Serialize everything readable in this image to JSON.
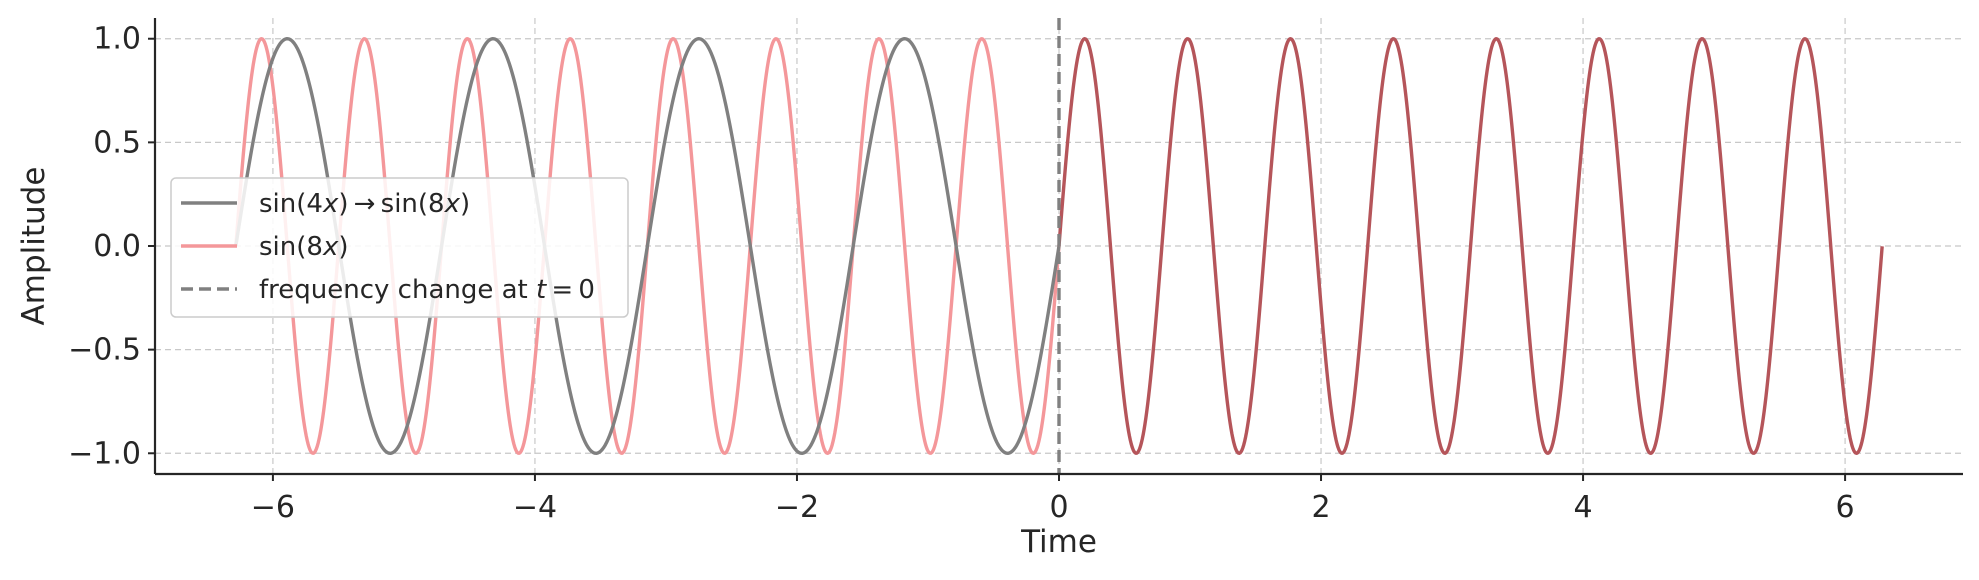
{
  "chart_data": {
    "type": "line",
    "title": "",
    "xlabel": "Time",
    "ylabel": "Amplitude",
    "xlim": [
      -6.9,
      6.9
    ],
    "ylim": [
      -1.1,
      1.1
    ],
    "x_ticks": [
      -6,
      -4,
      -2,
      0,
      2,
      4,
      6
    ],
    "x_tick_labels": [
      "−6",
      "−4",
      "−2",
      "0",
      "2",
      "4",
      "6"
    ],
    "y_ticks": [
      -1.0,
      -0.5,
      0.0,
      0.5,
      1.0
    ],
    "y_tick_labels": [
      "−1.0",
      "−0.5",
      "0.0",
      "0.5",
      "1.0"
    ],
    "grid": true,
    "grid_style": "dashed",
    "legend_position": "center-left",
    "x_range": [
      -6.283,
      6.283
    ],
    "series": [
      {
        "name": "sin(4x) → sin(8x)",
        "color": "#808080",
        "segments": [
          {
            "x_from": -6.283,
            "x_to": 0,
            "function": "sin(4x)",
            "color": "#808080"
          },
          {
            "x_from": 0,
            "x_to": 6.283,
            "function": "sin(8x)",
            "color": "#b5555a"
          }
        ]
      },
      {
        "name": "sin(8x)",
        "color": "#f4979a",
        "segments": [
          {
            "x_from": -6.283,
            "x_to": 0,
            "function": "sin(8x)",
            "color": "#f4979a"
          }
        ]
      }
    ],
    "annotations": [
      {
        "type": "vline",
        "x": 0,
        "style": "dashed",
        "color": "#808080",
        "label": "frequency change at t = 0"
      }
    ]
  },
  "legend": {
    "items": [
      {
        "pre": "sin(4",
        "var": "x",
        "mid": ") → sin(8",
        "var2": "x",
        "post": ")",
        "color": "#808080",
        "style": "solid"
      },
      {
        "pre": "sin(8",
        "var": "x",
        "mid": ")",
        "var2": "",
        "post": "",
        "color": "#f4979a",
        "style": "solid"
      },
      {
        "pre": "frequency change at ",
        "var": "t",
        "mid": " = 0",
        "var2": "",
        "post": "",
        "color": "#808080",
        "style": "dashed"
      }
    ]
  }
}
